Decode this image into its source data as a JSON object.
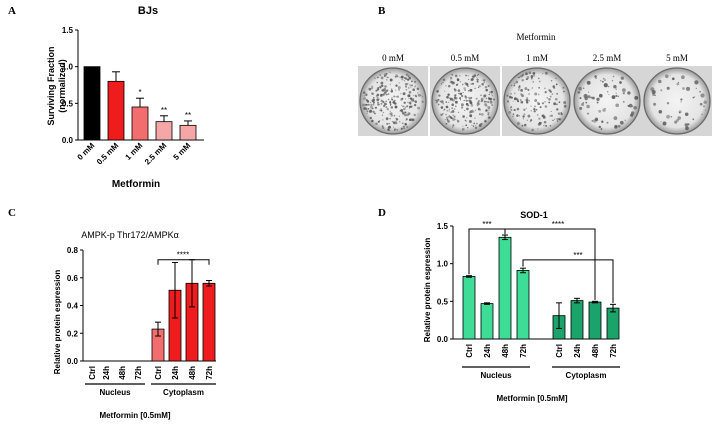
{
  "panel_letters": {
    "a": "A",
    "b": "B",
    "c": "C",
    "d": "D"
  },
  "colors": {
    "black": "#000000",
    "red": "#ee1c1c",
    "light_red": "#f26d6d",
    "pink": "#f5a7a7",
    "bright_green": "#3ddc97",
    "dark_green": "#1aa36b"
  },
  "panel_b": {
    "title": "Metformin",
    "labels": [
      "0 mM",
      "0.5 mM",
      "1 mM",
      "2.5 mM",
      "5 mM"
    ]
  },
  "chart_data": [
    {
      "panel": "A",
      "type": "bar",
      "title": "BJs",
      "ylabel_line1": "Surviving Fraction",
      "ylabel_line2": "(normalized)",
      "xlabel": "Metformin",
      "categories": [
        "0 mM",
        "0.5 mM",
        "1 mM",
        "2.5 mM",
        "5 mM"
      ],
      "values": [
        1.0,
        0.8,
        0.45,
        0.25,
        0.2
      ],
      "errors": [
        0.0,
        0.13,
        0.12,
        0.08,
        0.06
      ],
      "significance": [
        "",
        "",
        "*",
        "**",
        "**"
      ],
      "ylim": [
        0,
        1.5
      ],
      "yticks": [
        "0.0",
        "0.5",
        "1.0",
        "1.5"
      ]
    },
    {
      "panel": "C",
      "type": "bar",
      "title": "AMPK-p Thr172/AMPKα",
      "ylabel": "Relative protein espression",
      "xlabel": "Metformin [0.5mM]",
      "categories": [
        "Ctrl",
        "24h",
        "48h",
        "72h",
        "Ctrl",
        "24h",
        "48h",
        "72h"
      ],
      "groups": [
        "Nucleus",
        "Cytoplasm"
      ],
      "values": [
        0,
        0,
        0,
        0,
        0.23,
        0.51,
        0.56,
        0.56
      ],
      "errors": [
        0,
        0,
        0,
        0,
        0.05,
        0.2,
        0.17,
        0.02
      ],
      "bracket_label": "****",
      "ylim": [
        0,
        0.8
      ],
      "yticks": [
        "0.0",
        "0.2",
        "0.4",
        "0.6",
        "0.8"
      ]
    },
    {
      "panel": "D",
      "type": "bar",
      "title": "SOD-1",
      "ylabel": "Relative protein espression",
      "xlabel": "Metformin [0.5mM]",
      "categories": [
        "Ctrl",
        "24h",
        "48h",
        "72h",
        "Ctrl",
        "24h",
        "48h",
        "72h"
      ],
      "groups": [
        "Nucleus",
        "Cytoplasm"
      ],
      "values": [
        0.83,
        0.47,
        1.35,
        0.91,
        0.31,
        0.51,
        0.49,
        0.41
      ],
      "errors": [
        0.01,
        0.01,
        0.03,
        0.03,
        0.17,
        0.03,
        0.01,
        0.05
      ],
      "brackets": [
        "***",
        "****",
        "***"
      ],
      "ylim": [
        0,
        1.5
      ],
      "yticks": [
        "0.0",
        "0.5",
        "1.0",
        "1.5"
      ]
    }
  ]
}
